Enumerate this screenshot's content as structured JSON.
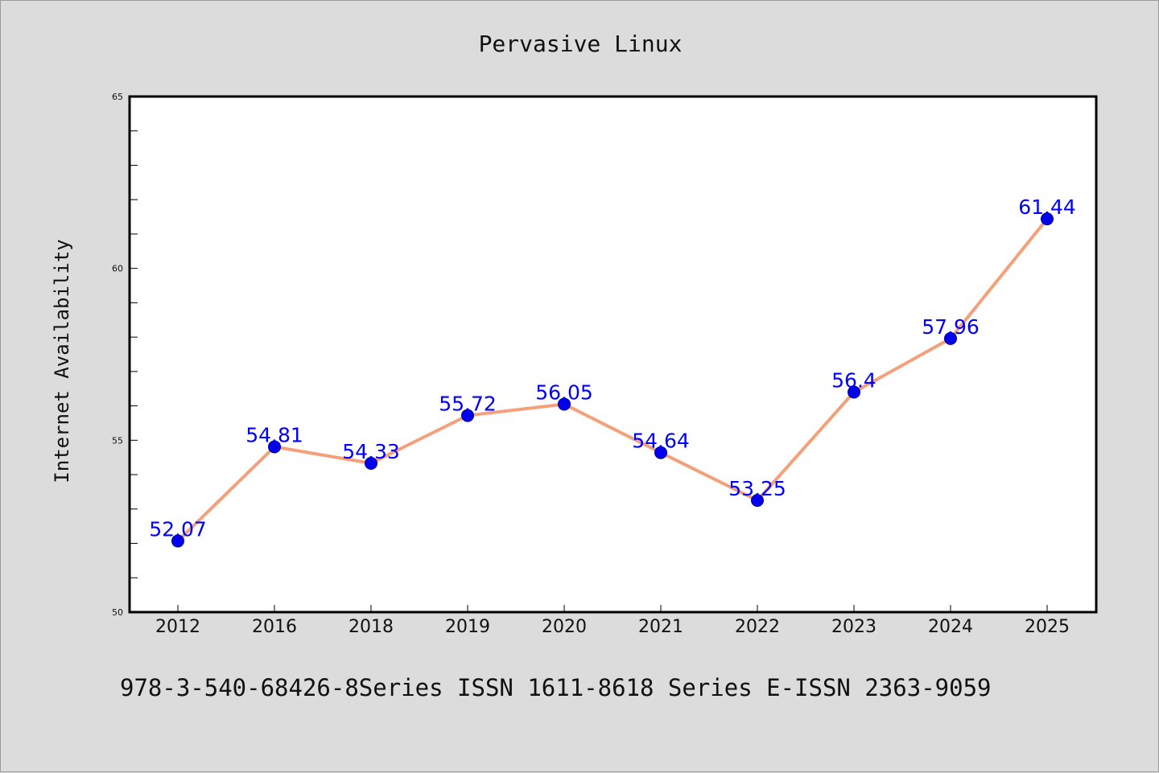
{
  "chart_data": {
    "type": "line",
    "title": "Pervasive Linux",
    "xlabel": "",
    "ylabel": "Internet Availability",
    "categories": [
      "2012",
      "2016",
      "2018",
      "2019",
      "2020",
      "2021",
      "2022",
      "2023",
      "2024",
      "2025"
    ],
    "series": [
      {
        "values": [
          52.07,
          54.81,
          54.33,
          55.72,
          56.05,
          54.64,
          53.25,
          56.4,
          57.96,
          61.44
        ]
      }
    ],
    "data_labels": [
      "52.07",
      "54.81",
      "54.33",
      "55.72",
      "56.05",
      "54.64",
      "53.25",
      "56.4",
      "57.96",
      "61.44"
    ],
    "ylim": [
      50,
      65
    ],
    "yticks": [
      "50",
      "55",
      "60",
      "65"
    ],
    "grid": false,
    "legend": "none",
    "colors": {
      "line": "#f4a07a",
      "marker": "#0000ee",
      "data_label": "#0000ff",
      "background": "#dcdcdc",
      "plot_area": "#ffffff"
    }
  },
  "footer": "978-3-540-68426-8Series ISSN 1611-8618 Series E-ISSN 2363-9059"
}
